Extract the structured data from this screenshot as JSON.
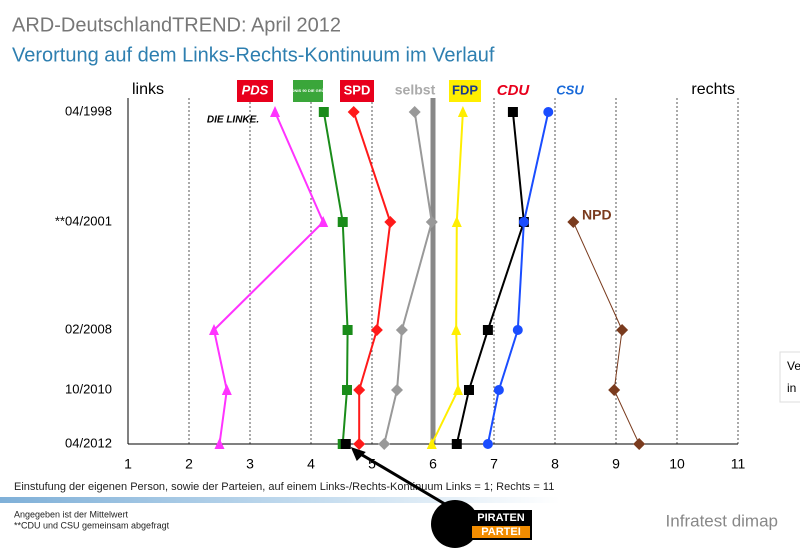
{
  "chart_data": {
    "type": "line",
    "title": "ARD-DeutschlandTREND: April 2012",
    "subtitle": "Verortung auf dem Links-Rechts-Kontinuum im Verlauf",
    "left_label": "links",
    "right_label": "rechts",
    "xlabel": "Einstufung der eigenen Person, sowie der Parteien, auf einem Links-/Rechts-Kontinuum Links = 1; Rechts = 11",
    "notes": [
      "Angegeben ist der Mittelwert",
      "**CDU und CSU gemeinsam abgefragt"
    ],
    "source": "Infratest dimap",
    "side_note": [
      "Ve",
      "in"
    ],
    "categories": [
      "04/1998",
      "**04/2001",
      "02/2008",
      "10/2010",
      "04/2012"
    ],
    "xlim": [
      1,
      11
    ],
    "xticks": [
      1,
      2,
      3,
      4,
      5,
      6,
      7,
      8,
      9,
      10,
      11
    ],
    "grid": true,
    "series": [
      {
        "name": "PDS",
        "sublabel": "DIE LINKE.",
        "color": "#ff33ff",
        "marker": "triangle",
        "values": [
          3.41,
          4.2,
          2.41,
          2.62,
          2.5
        ]
      },
      {
        "name": "BÜNDNIS 90 DIE GRÜNEN",
        "color": "#1a8c1a",
        "marker": "square",
        "values": [
          4.21,
          4.52,
          4.6,
          4.59,
          4.52
        ]
      },
      {
        "name": "SPD",
        "color": "#ff1a1a",
        "marker": "diamond",
        "values": [
          4.7,
          5.3,
          5.08,
          4.79,
          4.79
        ]
      },
      {
        "name": "selbst",
        "color": "#999999",
        "marker": "diamond",
        "values": [
          5.7,
          5.98,
          5.49,
          5.41,
          5.2
        ]
      },
      {
        "name": "FDP",
        "color": "#ffee00",
        "marker": "triangle",
        "values": [
          6.49,
          6.39,
          6.38,
          6.41,
          5.98
        ]
      },
      {
        "name": "CDU",
        "color": "#000000",
        "marker": "square",
        "values": [
          7.31,
          7.49,
          6.9,
          6.59,
          6.39
        ]
      },
      {
        "name": "CSU",
        "color": "#1a4dff",
        "marker": "circle",
        "values": [
          7.89,
          7.49,
          7.39,
          7.08,
          6.9
        ]
      },
      {
        "name": "NPD",
        "color": "#7a3b1e",
        "marker": "diamond",
        "values": [
          null,
          8.3,
          9.1,
          8.97,
          9.38
        ]
      },
      {
        "name": "PIRATEN",
        "sublabel": "PARTEI",
        "color": "#000000",
        "marker": "square",
        "values": [
          null,
          null,
          null,
          null,
          4.57
        ]
      }
    ]
  }
}
